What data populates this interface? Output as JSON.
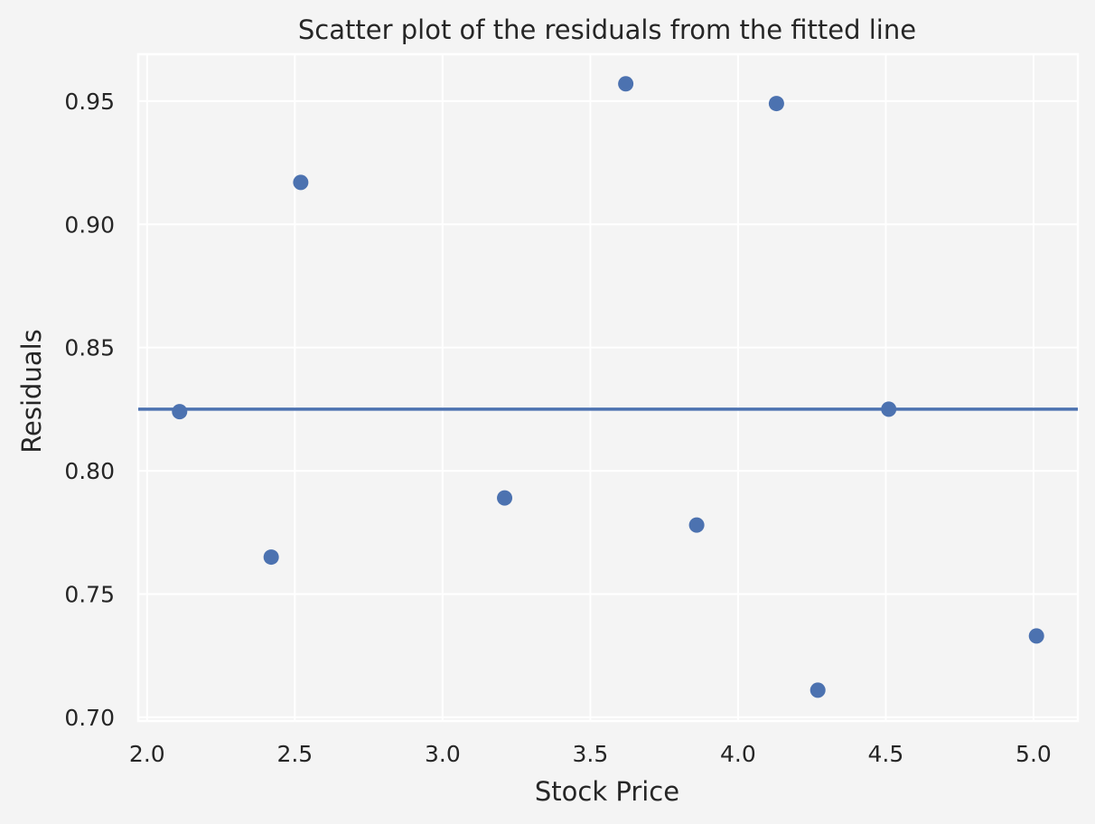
{
  "chart_data": {
    "type": "scatter",
    "title": "Scatter plot of the residuals from the fitted line",
    "xlabel": "Stock Price",
    "ylabel": "Residuals",
    "xlim": [
      1.97,
      5.15
    ],
    "ylim": [
      0.6985,
      0.969
    ],
    "xticks": [
      2.0,
      2.5,
      3.0,
      3.5,
      4.0,
      4.5,
      5.0
    ],
    "xtick_labels": [
      "2.0",
      "2.5",
      "3.0",
      "3.5",
      "4.0",
      "4.5",
      "5.0"
    ],
    "yticks": [
      0.7,
      0.75,
      0.8,
      0.85,
      0.9,
      0.95
    ],
    "ytick_labels": [
      "0.70",
      "0.75",
      "0.80",
      "0.85",
      "0.90",
      "0.95"
    ],
    "grid": true,
    "points": [
      {
        "x": 2.11,
        "y": 0.824
      },
      {
        "x": 2.42,
        "y": 0.765
      },
      {
        "x": 2.52,
        "y": 0.917
      },
      {
        "x": 3.21,
        "y": 0.789
      },
      {
        "x": 3.62,
        "y": 0.957
      },
      {
        "x": 3.86,
        "y": 0.778
      },
      {
        "x": 4.13,
        "y": 0.949
      },
      {
        "x": 4.27,
        "y": 0.711
      },
      {
        "x": 4.51,
        "y": 0.825
      },
      {
        "x": 5.01,
        "y": 0.733
      }
    ],
    "hline": {
      "y": 0.825
    },
    "colors": {
      "background": "#f4f4f4",
      "grid": "#ffffff",
      "point": "#4c72b0",
      "line": "#4c72b0",
      "text": "#262626"
    }
  }
}
